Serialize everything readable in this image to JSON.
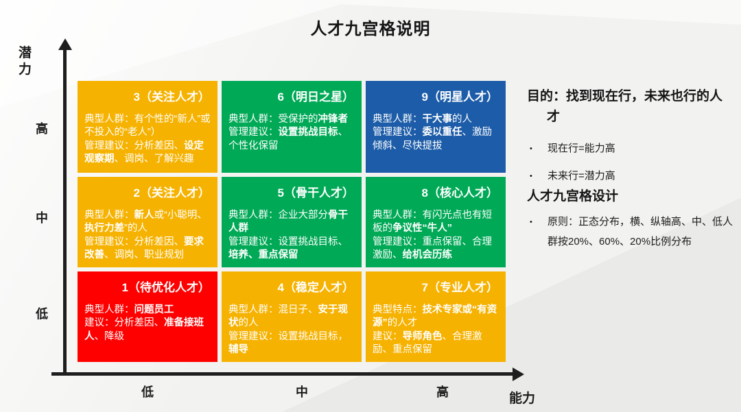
{
  "title": "人才九宫格说明",
  "colors": {
    "yellow": "#F6B200",
    "green": "#00A956",
    "blue": "#1C5CA8",
    "red": "#FE0000"
  },
  "axes": {
    "y_label": "潜力",
    "x_label": "能力",
    "y_ticks": [
      "高",
      "中",
      "低"
    ],
    "x_ticks": [
      "低",
      "中",
      "高"
    ]
  },
  "grid": {
    "cells": [
      {
        "num": 3,
        "title": "3（关注人才）",
        "color": "yellow",
        "body": [
          [
            {
              "t": "典型人群：有个性的“新人”或不投入的“老人”）"
            }
          ],
          [
            {
              "t": "管理建议：分析差因、"
            },
            {
              "t": "设定观察期",
              "b": true
            },
            {
              "t": "、调岗、了解兴趣"
            }
          ]
        ]
      },
      {
        "num": 6,
        "title": "6（明日之星）",
        "color": "green",
        "body": [
          [
            {
              "t": "典型人群：受保护的"
            },
            {
              "t": "冲锋者",
              "b": true
            }
          ],
          [
            {
              "t": "管理建议："
            },
            {
              "t": "设置挑战目标",
              "b": true
            },
            {
              "t": "、个性化保留"
            }
          ]
        ]
      },
      {
        "num": 9,
        "title": "9（明星人才）",
        "color": "blue",
        "body": [
          [
            {
              "t": "典型人群："
            },
            {
              "t": "干大事",
              "b": true
            },
            {
              "t": "的人"
            }
          ],
          [
            {
              "t": "管理建议："
            },
            {
              "t": "委以重任",
              "b": true
            },
            {
              "t": "、激励倾斜、尽快提拔"
            }
          ]
        ]
      },
      {
        "num": 2,
        "title": "2（关注人才）",
        "color": "yellow",
        "body": [
          [
            {
              "t": "典型人群："
            },
            {
              "t": "新人",
              "b": true
            },
            {
              "t": "或“小聪明、"
            },
            {
              "t": "执行力差",
              "b": true
            },
            {
              "t": "”的人"
            }
          ],
          [
            {
              "t": "管理建议：分析差因、"
            },
            {
              "t": "要求改善",
              "b": true
            },
            {
              "t": "、调岗、职业规划"
            }
          ]
        ]
      },
      {
        "num": 5,
        "title": "5（骨干人才）",
        "color": "green",
        "body": [
          [
            {
              "t": "典型人群：企业大部分"
            },
            {
              "t": "骨干人群",
              "b": true
            }
          ],
          [
            {
              "t": "管理建议：设置挑战目标、"
            },
            {
              "t": "培养、重点保留",
              "b": true
            }
          ]
        ]
      },
      {
        "num": 8,
        "title": "8（核心人才）",
        "color": "green",
        "body": [
          [
            {
              "t": "典型人群：有闪光点也有短板的"
            },
            {
              "t": "争议性“牛人”",
              "b": true
            }
          ],
          [
            {
              "t": "管理建议：重点保留、合理激励、"
            },
            {
              "t": "给机会历练",
              "b": true
            }
          ]
        ]
      },
      {
        "num": 1,
        "title": "1（待优化人才）",
        "color": "red",
        "body": [
          [
            {
              "t": "典型人群："
            },
            {
              "t": "问题员工",
              "b": true
            }
          ],
          [
            {
              "t": "建议：分析差因、"
            },
            {
              "t": "准备接班人",
              "b": true
            },
            {
              "t": "、降级"
            }
          ]
        ]
      },
      {
        "num": 4,
        "title": "4（稳定人才）",
        "color": "yellow",
        "body": [
          [
            {
              "t": "典型人群：混日子、"
            },
            {
              "t": "安于现状",
              "b": true
            },
            {
              "t": "的人"
            }
          ],
          [
            {
              "t": "管理建议：设置挑战目标，"
            },
            {
              "t": "辅导",
              "b": true
            }
          ]
        ]
      },
      {
        "num": 7,
        "title": "7（专业人才）",
        "color": "yellow",
        "body": [
          [
            {
              "t": "典型特点："
            },
            {
              "t": "技术专家或“有资源”",
              "b": true
            },
            {
              "t": "的人才"
            }
          ],
          [
            {
              "t": "建议："
            },
            {
              "t": "导师角色",
              "b": true
            },
            {
              "t": "、合理激励、重点保留"
            }
          ]
        ]
      }
    ]
  },
  "side": {
    "purpose_heading": "目的：找到现在行，未来也行的人才",
    "purpose_bullets": [
      "现在行=能力高",
      "未来行=潜力高"
    ],
    "design_heading": "人才九宫格设计",
    "design_bullets": [
      "原则：正态分布，横、纵轴高、中、低人群按20%、60%、20%比例分布"
    ],
    "bullet_glyph": "•"
  }
}
